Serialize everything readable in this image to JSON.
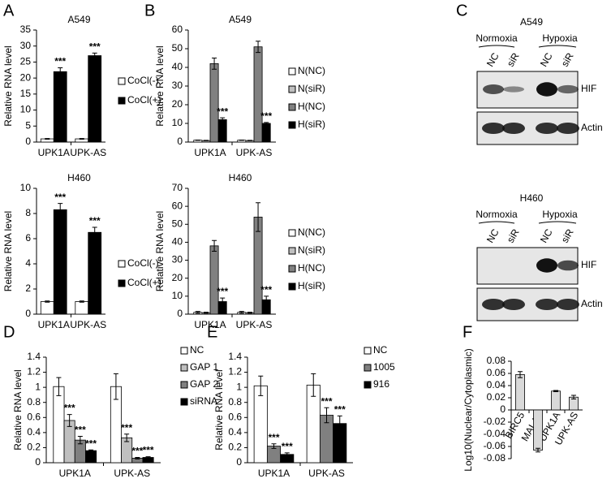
{
  "panel_labels": [
    "A",
    "B",
    "C",
    "D",
    "E",
    "F"
  ],
  "blots": [
    {
      "title": "A549",
      "groups": [
        "Normoxia",
        "Hypoxia"
      ],
      "lanes": [
        "NC",
        "siR",
        "NC",
        "siR"
      ],
      "proteins": [
        "HIF",
        "Actin"
      ]
    },
    {
      "title": "H460",
      "groups": [
        "Normoxia",
        "Hypoxia"
      ],
      "lanes": [
        "NC",
        "siR",
        "NC",
        "siR"
      ],
      "proteins": [
        "HIF",
        "Actin"
      ]
    }
  ],
  "chart_data": [
    {
      "type": "bar",
      "title": "A549",
      "y_label": "Relative RNA level",
      "categories": [
        "UPK1A",
        "UPK-AS"
      ],
      "ylim": [
        0,
        35
      ],
      "yticks": [
        0,
        5,
        10,
        15,
        20,
        25,
        30,
        35
      ],
      "legend": "right",
      "series": [
        {
          "name": "CoCl(-)",
          "color": "#ffffff",
          "values": [
            1,
            1
          ],
          "errors": [
            0.1,
            0.1
          ]
        },
        {
          "name": "CoCl(+)",
          "color": "#000000",
          "values": [
            22,
            27
          ],
          "errors": [
            1.2,
            0.8
          ],
          "annotation": "***"
        }
      ]
    },
    {
      "type": "bar",
      "title": "H460",
      "y_label": "Relative RNA level",
      "categories": [
        "UPK1A",
        "UPK-AS"
      ],
      "ylim": [
        0,
        10
      ],
      "yticks": [
        0,
        2,
        4,
        6,
        8,
        10
      ],
      "legend": "right",
      "series": [
        {
          "name": "CoCl(-)",
          "color": "#ffffff",
          "values": [
            1,
            1
          ],
          "errors": [
            0.05,
            0.05
          ]
        },
        {
          "name": "CoCl(+)",
          "color": "#000000",
          "values": [
            8.3,
            6.5
          ],
          "errors": [
            0.5,
            0.4
          ],
          "annotation": "***"
        }
      ]
    },
    {
      "type": "bar",
      "title": "A549",
      "y_label": "Relative RNA level",
      "categories": [
        "UPK1A",
        "UPK-AS"
      ],
      "ylim": [
        0,
        60
      ],
      "yticks": [
        0,
        10,
        20,
        30,
        40,
        50,
        60
      ],
      "legend": "right",
      "series": [
        {
          "name": "N(NC)",
          "color": "#ffffff",
          "values": [
            1,
            1
          ],
          "errors": [
            0.1,
            0.1
          ]
        },
        {
          "name": "N(siR)",
          "color": "#bfbfbf",
          "values": [
            0.8,
            0.8
          ],
          "errors": [
            0.1,
            0.1
          ]
        },
        {
          "name": "H(NC)",
          "color": "#808080",
          "values": [
            42,
            51
          ],
          "errors": [
            3,
            3
          ]
        },
        {
          "name": "H(siR)",
          "color": "#000000",
          "values": [
            12,
            10
          ],
          "errors": [
            1,
            0.5
          ],
          "annotation": "***"
        }
      ]
    },
    {
      "type": "bar",
      "title": "H460",
      "y_label": "Relative RNA level",
      "categories": [
        "UPK1A",
        "UPK-AS"
      ],
      "ylim": [
        0,
        70
      ],
      "yticks": [
        0,
        10,
        20,
        30,
        40,
        50,
        60,
        70
      ],
      "legend": "right",
      "series": [
        {
          "name": "N(NC)",
          "color": "#ffffff",
          "values": [
            1,
            1
          ],
          "errors": [
            0.5,
            0.5
          ]
        },
        {
          "name": "N(siR)",
          "color": "#bfbfbf",
          "values": [
            0.8,
            0.8
          ],
          "errors": [
            0.3,
            0.3
          ]
        },
        {
          "name": "H(NC)",
          "color": "#808080",
          "values": [
            38,
            54
          ],
          "errors": [
            3,
            8
          ]
        },
        {
          "name": "H(siR)",
          "color": "#000000",
          "values": [
            7,
            8
          ],
          "errors": [
            2,
            2
          ],
          "annotation": "***"
        }
      ]
    },
    {
      "type": "bar",
      "y_label": "Relative RNA level",
      "categories": [
        "UPK1A",
        "UPK-AS"
      ],
      "ylim": [
        0,
        1.4
      ],
      "yticks": [
        0,
        0.2,
        0.4,
        0.6,
        0.8,
        1,
        1.2,
        1.4
      ],
      "legend": "right",
      "series": [
        {
          "name": "NC",
          "color": "#ffffff",
          "values": [
            1.01,
            1.01
          ],
          "errors": [
            0.12,
            0.17
          ]
        },
        {
          "name": "GAP 1",
          "color": "#bfbfbf",
          "values": [
            0.56,
            0.33
          ],
          "errors": [
            0.08,
            0.05
          ],
          "annotation": "***"
        },
        {
          "name": "GAP 2",
          "color": "#808080",
          "values": [
            0.3,
            0.06
          ],
          "errors": [
            0.05,
            0.01
          ],
          "annotation": "***"
        },
        {
          "name": "siRNA",
          "color": "#000000",
          "values": [
            0.16,
            0.07
          ],
          "errors": [
            0.01,
            0.01
          ],
          "annotation": "***"
        }
      ]
    },
    {
      "type": "bar",
      "y_label": "Relative RNA level",
      "categories": [
        "UPK1A",
        "UPK-AS"
      ],
      "ylim": [
        0,
        1.4
      ],
      "yticks": [
        0,
        0.2,
        0.4,
        0.6,
        0.8,
        1,
        1.2,
        1.4
      ],
      "legend": "right",
      "series": [
        {
          "name": "NC",
          "color": "#ffffff",
          "values": [
            1.02,
            1.03
          ],
          "errors": [
            0.13,
            0.15
          ]
        },
        {
          "name": "1005",
          "color": "#808080",
          "values": [
            0.22,
            0.63
          ],
          "errors": [
            0.03,
            0.1
          ],
          "annotation": "***"
        },
        {
          "name": "916",
          "color": "#000000",
          "values": [
            0.11,
            0.52
          ],
          "errors": [
            0.02,
            0.1
          ],
          "annotation": "***"
        }
      ]
    },
    {
      "type": "bar",
      "y_label": "Log10(Nuclear/Cytoplasmic)",
      "categories": [
        "BIRC5",
        "MALAT",
        "UPK1A",
        "UPK-AS"
      ],
      "ylim": [
        -0.08,
        0.08
      ],
      "yticks": [
        -0.08,
        -0.06,
        -0.04,
        -0.02,
        0,
        0.02,
        0.04,
        0.06,
        0.08
      ],
      "rotate_categories": true,
      "series": [
        {
          "color": "#d9d9d9",
          "values": [
            0.058,
            -0.066,
            0.031,
            0.021
          ],
          "errors": [
            0.005,
            0.003,
            0.001,
            0.003
          ]
        }
      ]
    }
  ]
}
